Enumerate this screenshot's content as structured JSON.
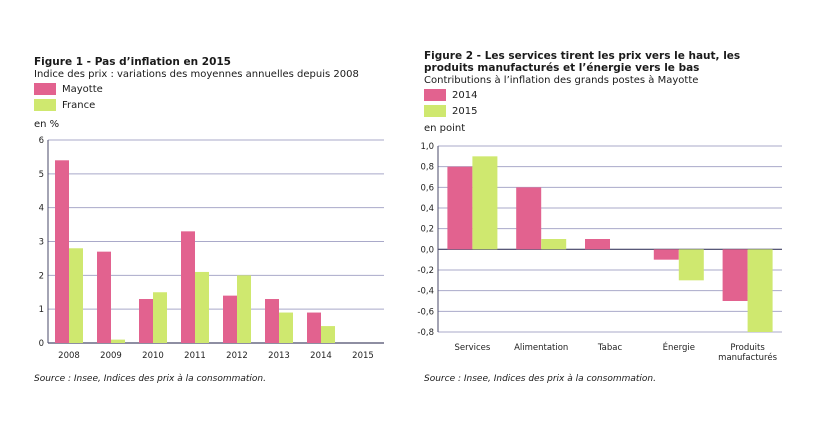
{
  "charts": [
    {
      "title": "Figure 1 - Pas d’inflation en 2015",
      "subtitle": "Indice des prix : variations des moyennes annuelles depuis 2008",
      "unit": "en %",
      "source": "Source : Insee, Indices des prix à la consommation."
    },
    {
      "title_line1": "Figure 2 - Les services tirent les prix vers le haut, les",
      "title_line2": "produits manufacturés et l’énergie vers le bas",
      "subtitle": "Contributions à l’inflation des grands postes à Mayotte",
      "unit": "en point",
      "source": "Source : Insee, Indices des prix à la consommation."
    }
  ],
  "colors": {
    "pink": "#e2628f",
    "green": "#cfe86f",
    "grid": "#a9a9c9",
    "axis": "#4a4a6a"
  },
  "chart_data": [
    {
      "type": "bar",
      "categories": [
        "2008",
        "2009",
        "2010",
        "2011",
        "2012",
        "2013",
        "2014",
        "2015"
      ],
      "series": [
        {
          "name": "Mayotte",
          "values": [
            5.4,
            2.7,
            1.3,
            3.3,
            1.4,
            1.3,
            0.9,
            0.0
          ]
        },
        {
          "name": "France",
          "values": [
            2.8,
            0.1,
            1.5,
            2.1,
            2.0,
            0.9,
            0.5,
            0.0
          ]
        }
      ],
      "ylim": [
        0,
        6
      ],
      "yticks": [
        "0",
        "1",
        "2",
        "3",
        "4",
        "5",
        "6"
      ],
      "ylabel": "en %",
      "grid": true,
      "legend": "top-left"
    },
    {
      "type": "bar",
      "categories": [
        "Services",
        "Alimentation",
        "Tabac",
        "Énergie",
        "Produits manufacturés"
      ],
      "series": [
        {
          "name": "2014",
          "values": [
            0.8,
            0.6,
            0.1,
            -0.1,
            -0.5
          ]
        },
        {
          "name": "2015",
          "values": [
            0.9,
            0.1,
            0.0,
            -0.3,
            -0.8
          ]
        }
      ],
      "ylim": [
        -0.8,
        1.0
      ],
      "yticks": [
        "1,0",
        "0,8",
        "0,6",
        "0,4",
        "0,2",
        "0,0",
        "-0,2",
        "-0,4",
        "-0,6",
        "-0,8"
      ],
      "ylabel": "en point",
      "grid": true,
      "legend": "top-left"
    }
  ]
}
